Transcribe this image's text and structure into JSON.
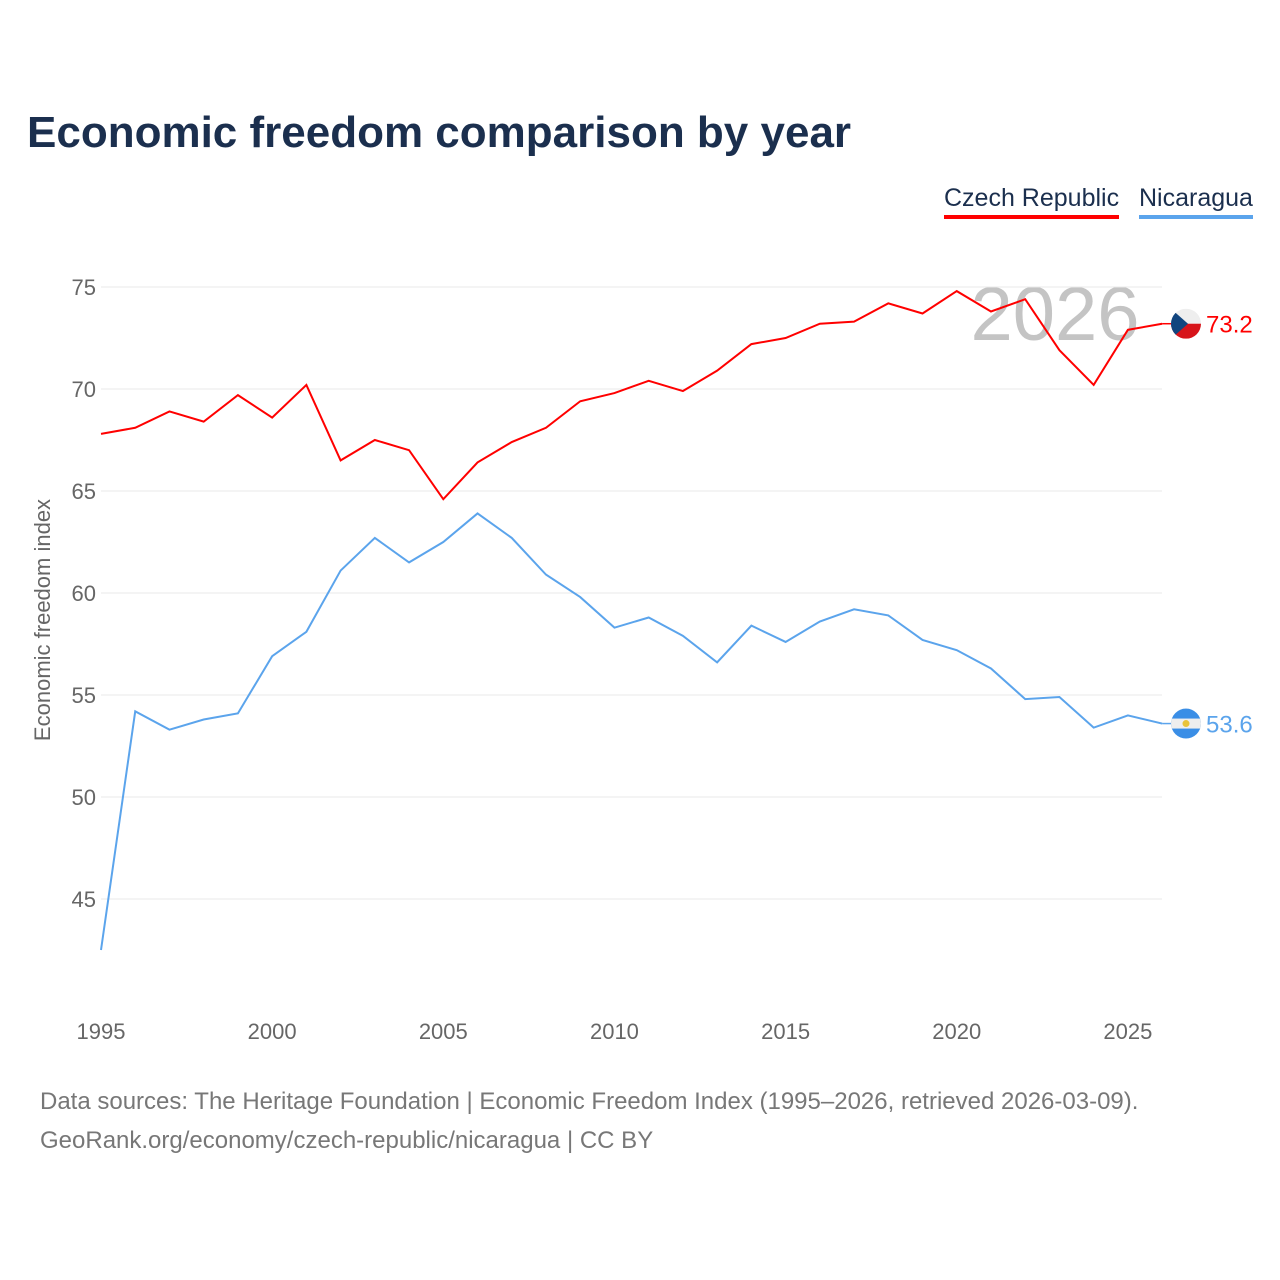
{
  "title": "Economic freedom comparison by year",
  "watermark_year": "2026",
  "sources_line1": "Data sources: The Heritage Foundation | Economic Freedom Index (1995–2026, retrieved 2026-03-09).",
  "sources_line2": "GeoRank.org/economy/czech-republic/nicaragua | CC BY",
  "chart_data": {
    "type": "line",
    "title": "Economic freedom comparison by year",
    "xlabel": "",
    "ylabel": "Economic freedom index",
    "x": [
      1995,
      1996,
      1997,
      1998,
      1999,
      2000,
      2001,
      2002,
      2003,
      2004,
      2005,
      2006,
      2007,
      2008,
      2009,
      2010,
      2011,
      2012,
      2013,
      2014,
      2015,
      2016,
      2017,
      2018,
      2019,
      2020,
      2021,
      2022,
      2023,
      2024,
      2025,
      2026
    ],
    "xticks": [
      1995,
      2000,
      2005,
      2010,
      2015,
      2020,
      2025
    ],
    "yticks": [
      45,
      50,
      55,
      60,
      65,
      70,
      75
    ],
    "ylim": [
      41,
      77
    ],
    "xlim": [
      1995,
      2026
    ],
    "grid": true,
    "legend_position": "top-right",
    "series": [
      {
        "name": "Czech Republic",
        "color": "#ff0000",
        "end_label": "73.2",
        "values": [
          67.8,
          68.1,
          68.9,
          68.4,
          69.7,
          68.6,
          70.2,
          66.5,
          67.5,
          67.0,
          64.6,
          66.4,
          67.4,
          68.1,
          69.4,
          69.8,
          70.4,
          69.9,
          70.9,
          72.2,
          72.5,
          73.2,
          73.3,
          74.2,
          73.7,
          74.8,
          73.8,
          74.4,
          71.9,
          70.2,
          72.9,
          73.2
        ]
      },
      {
        "name": "Nicaragua",
        "color": "#5ba4ec",
        "end_label": "53.6",
        "values": [
          42.5,
          54.2,
          53.3,
          53.8,
          54.1,
          56.9,
          58.1,
          61.1,
          62.7,
          61.5,
          62.5,
          63.9,
          62.7,
          60.9,
          59.8,
          58.3,
          58.8,
          57.9,
          56.6,
          58.4,
          57.6,
          58.6,
          59.2,
          58.9,
          57.7,
          57.2,
          56.3,
          54.8,
          54.9,
          53.4,
          54.0,
          53.6
        ]
      }
    ]
  }
}
